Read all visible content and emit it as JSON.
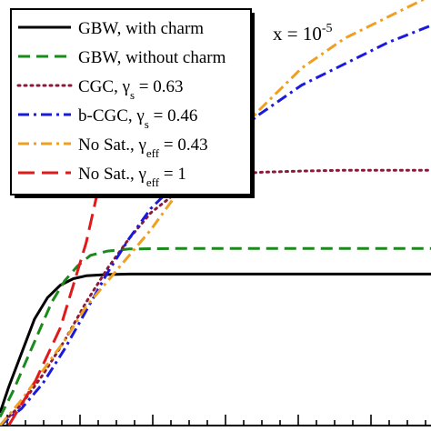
{
  "chart_data": {
    "type": "line",
    "annotation": {
      "text": "x = 10",
      "superscript": "-5"
    },
    "xlabel": "",
    "ylabel": "",
    "grid": false,
    "legend": {
      "placement": "top-left"
    },
    "xlim": [
      0,
      1
    ],
    "ylim": [
      0,
      1
    ],
    "series": [
      {
        "name": "GBW, with charm",
        "color": "#000000",
        "dash": "solid",
        "label_parts": [
          [
            "GBW, with charm",
            ""
          ]
        ],
        "x": [
          0,
          0.02,
          0.05,
          0.08,
          0.11,
          0.14,
          0.17,
          0.2,
          0.25,
          0.3,
          0.4,
          0.5,
          0.6,
          0.8,
          1.0
        ],
        "y": [
          0.03,
          0.09,
          0.17,
          0.25,
          0.3,
          0.33,
          0.345,
          0.352,
          0.355,
          0.356,
          0.356,
          0.356,
          0.356,
          0.356,
          0.356
        ]
      },
      {
        "name": "GBW, without charm",
        "color": "#1a8a1a",
        "dash": "dashed",
        "label_parts": [
          [
            "GBW, without charm",
            ""
          ]
        ],
        "x": [
          0,
          0.03,
          0.06,
          0.09,
          0.12,
          0.15,
          0.18,
          0.21,
          0.25,
          0.3,
          0.4,
          0.5,
          0.7,
          1.0
        ],
        "y": [
          0.02,
          0.08,
          0.15,
          0.22,
          0.29,
          0.34,
          0.375,
          0.4,
          0.41,
          0.415,
          0.416,
          0.416,
          0.416,
          0.416
        ]
      },
      {
        "name": "CGC, γs = 0.63",
        "color": "#8b1a3a",
        "dash": "dotted",
        "label_parts": [
          [
            "CGC, γ",
            ""
          ],
          [
            "s",
            "sub"
          ],
          [
            " = 0.63",
            ""
          ]
        ],
        "x": [
          0,
          0.05,
          0.1,
          0.15,
          0.2,
          0.25,
          0.3,
          0.35,
          0.4,
          0.45,
          0.5,
          0.55,
          0.6,
          0.7,
          0.8,
          1.0
        ],
        "y": [
          0.0,
          0.05,
          0.12,
          0.2,
          0.29,
          0.37,
          0.44,
          0.5,
          0.54,
          0.57,
          0.585,
          0.59,
          0.595,
          0.598,
          0.6,
          0.6
        ]
      },
      {
        "name": "b-CGC, γs = 0.46",
        "color": "#1a1adf",
        "dash": "dashdot",
        "label_parts": [
          [
            "b-CGC, γ",
            ""
          ],
          [
            "s",
            "sub"
          ],
          [
            " = 0.46",
            ""
          ]
        ],
        "x": [
          0,
          0.05,
          0.1,
          0.15,
          0.2,
          0.25,
          0.3,
          0.35,
          0.4,
          0.45,
          0.5,
          0.55,
          0.6,
          0.7,
          0.8,
          0.9,
          1.0
        ],
        "y": [
          0.0,
          0.04,
          0.1,
          0.18,
          0.27,
          0.36,
          0.44,
          0.51,
          0.56,
          0.6,
          0.65,
          0.69,
          0.73,
          0.8,
          0.85,
          0.9,
          0.94
        ]
      },
      {
        "name": "No Sat., γeff = 0.43",
        "color": "#f0a020",
        "dash": "dashdot",
        "label_parts": [
          [
            "No Sat., γ",
            ""
          ],
          [
            "eff",
            "sub"
          ],
          [
            " = 0.43",
            ""
          ]
        ],
        "x": [
          0,
          0.05,
          0.1,
          0.15,
          0.2,
          0.25,
          0.3,
          0.35,
          0.4,
          0.45,
          0.5,
          0.55,
          0.6,
          0.65,
          0.7,
          0.8,
          0.9,
          1.0
        ],
        "y": [
          0.0,
          0.06,
          0.13,
          0.2,
          0.28,
          0.34,
          0.4,
          0.46,
          0.53,
          0.58,
          0.63,
          0.68,
          0.74,
          0.79,
          0.84,
          0.91,
          0.96,
          1.01
        ]
      },
      {
        "name": "No Sat., γeff = 1",
        "color": "#e01a1a",
        "dash": "longdash",
        "label_parts": [
          [
            "No Sat., γ",
            ""
          ],
          [
            "eff",
            "sub"
          ],
          [
            " = 1",
            ""
          ]
        ],
        "x": [
          0.02,
          0.08,
          0.14,
          0.2,
          0.26,
          0.3
        ],
        "y": [
          0.0,
          0.1,
          0.23,
          0.43,
          0.7,
          0.95
        ]
      }
    ]
  }
}
